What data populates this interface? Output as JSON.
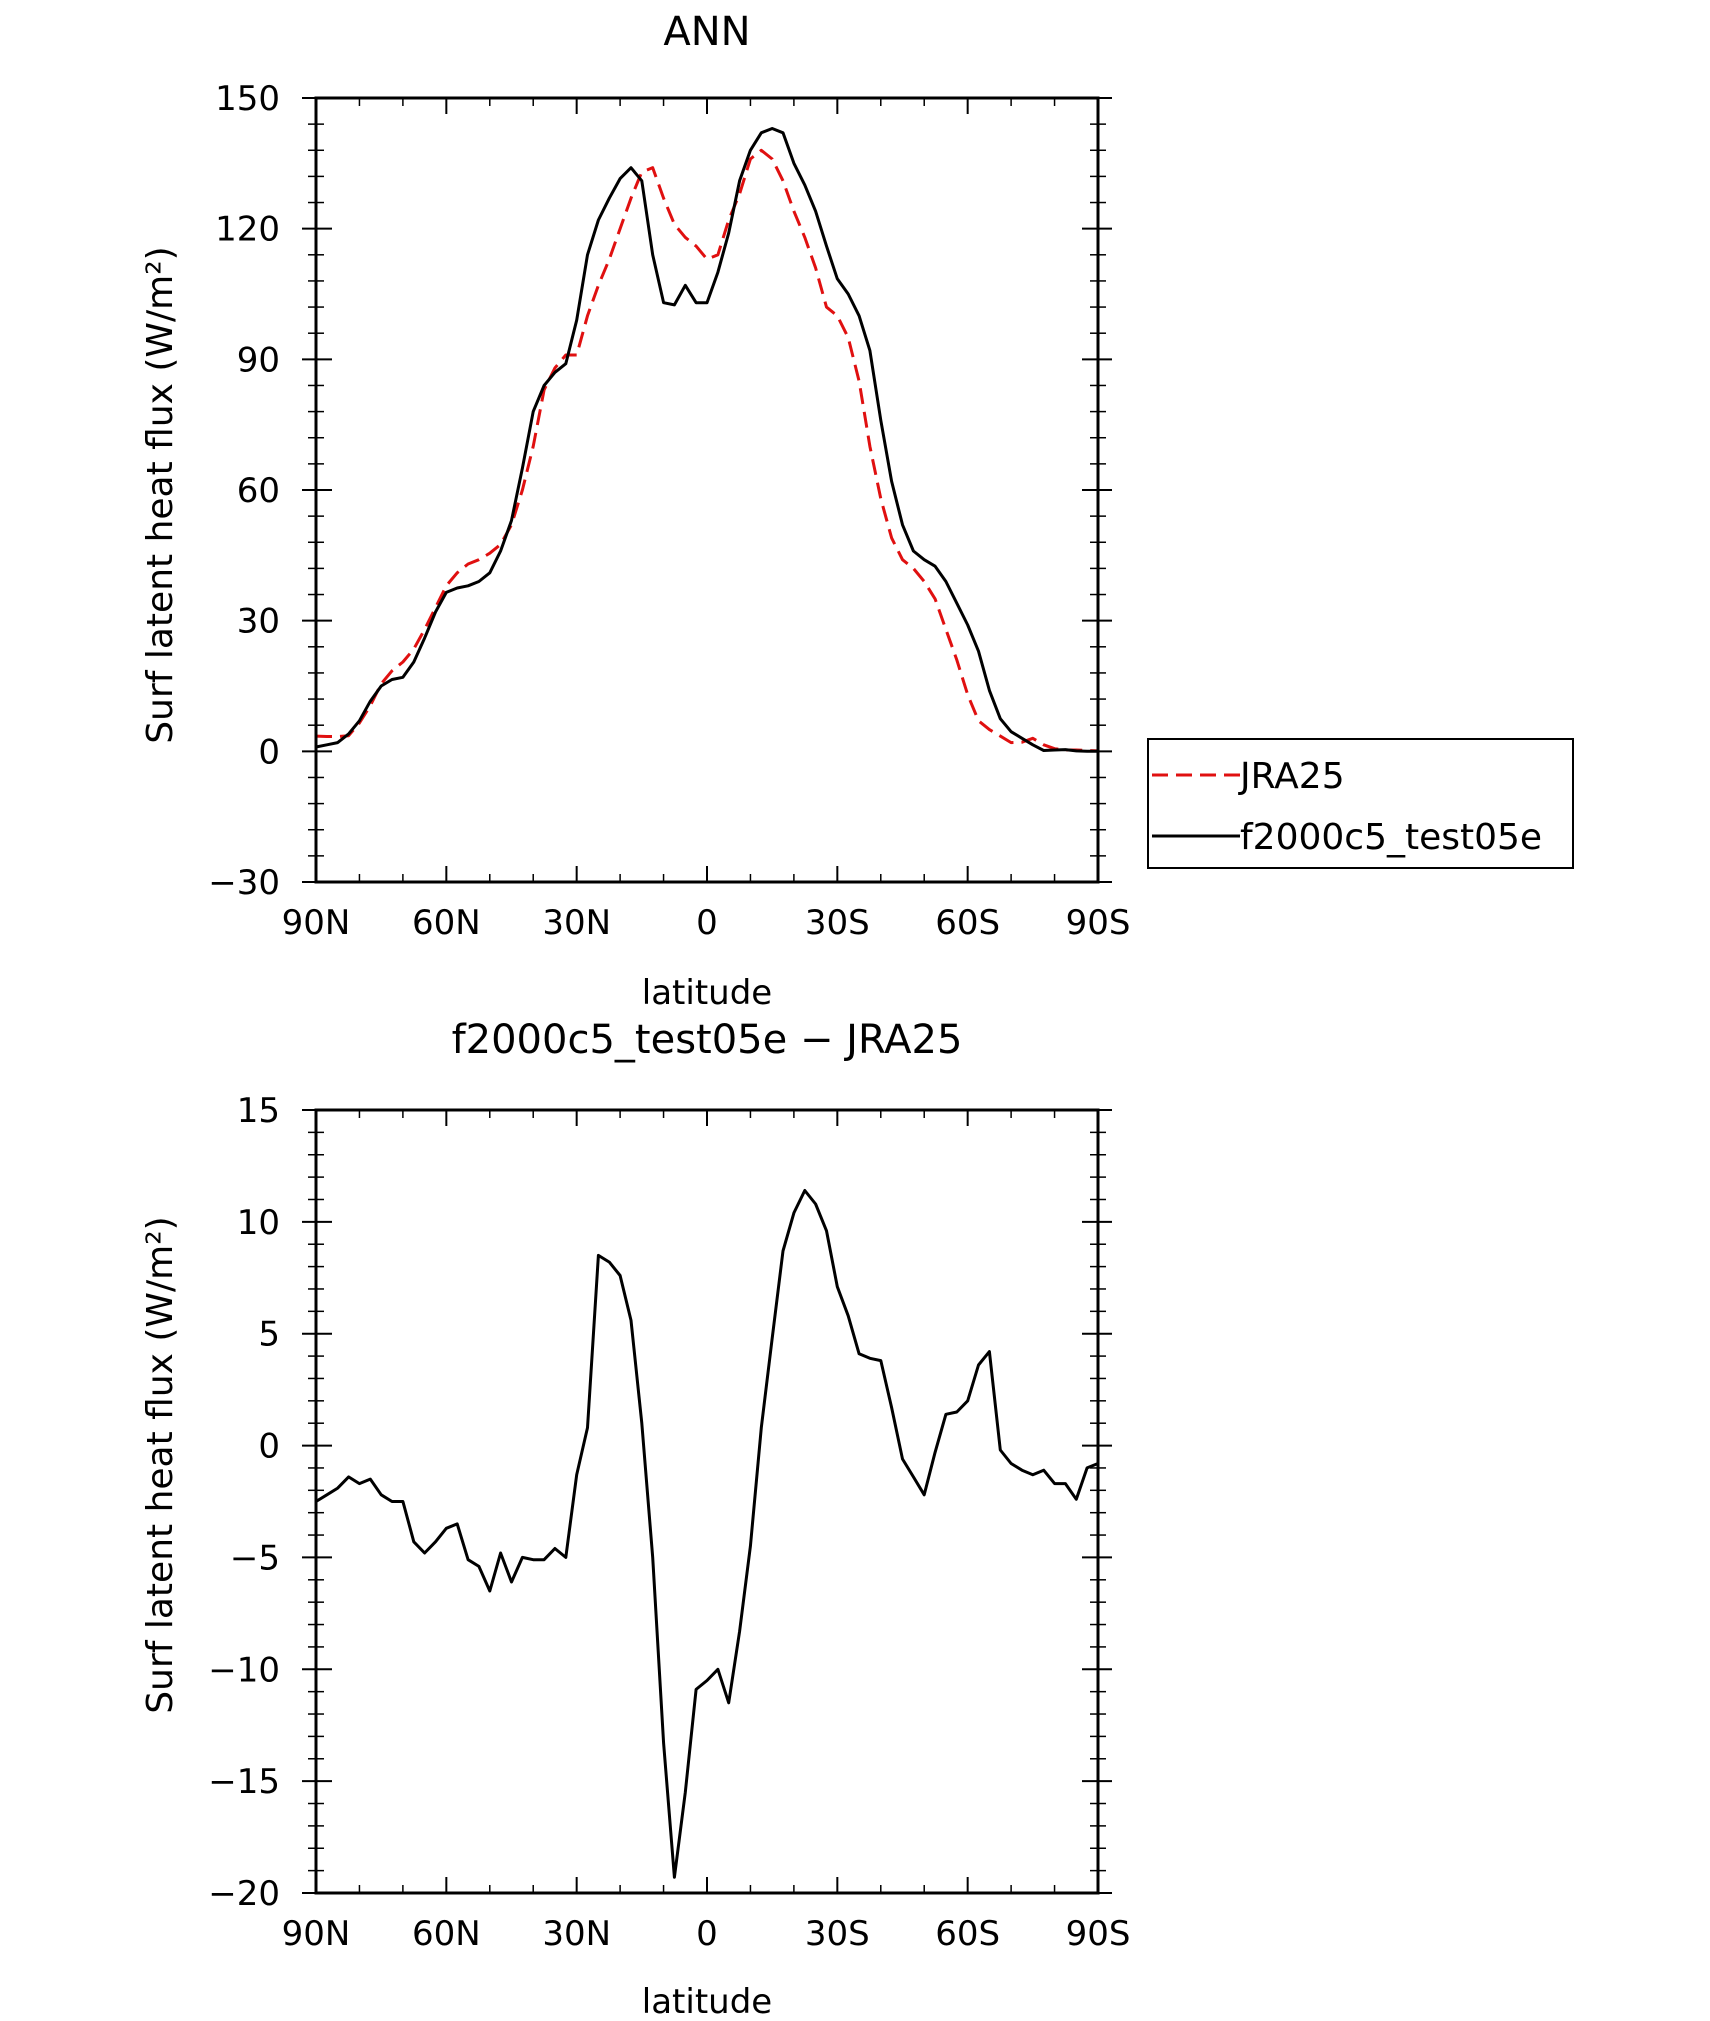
{
  "chart_data": [
    {
      "type": "line",
      "title": "ANN",
      "xlabel": "latitude",
      "ylabel": "Surf latent heat flux (W/m²)",
      "xlim": [
        90,
        -90
      ],
      "ylim": [
        -30,
        150
      ],
      "x_ticks": [
        90,
        60,
        30,
        0,
        -30,
        -60,
        -90
      ],
      "x_tick_labels": [
        "90N",
        "60N",
        "30N",
        "0",
        "30S",
        "60S",
        "90S"
      ],
      "y_ticks": [
        -30,
        0,
        30,
        60,
        90,
        120,
        150
      ],
      "y_tick_labels": [
        "−30",
        "0",
        "30",
        "60",
        "90",
        "120",
        "150"
      ],
      "legend_position": "right",
      "x": [
        90,
        87.5,
        85,
        82.5,
        80,
        77.5,
        75,
        72.5,
        70,
        67.5,
        65,
        62.5,
        60,
        57.5,
        55,
        52.5,
        50,
        47.5,
        45,
        42.5,
        40,
        37.5,
        35,
        32.5,
        30,
        27.5,
        25,
        22.5,
        20,
        17.5,
        15,
        12.5,
        10,
        7.5,
        5,
        2.5,
        0,
        -2.5,
        -5,
        -7.5,
        -10,
        -12.5,
        -15,
        -17.5,
        -20,
        -22.5,
        -25,
        -27.5,
        -30,
        -32.5,
        -35,
        -37.5,
        -40,
        -42.5,
        -45,
        -47.5,
        -50,
        -52.5,
        -55,
        -57.5,
        -60,
        -62.5,
        -65,
        -67.5,
        -70,
        -72.5,
        -75,
        -77.5,
        -80,
        -82.5,
        -85,
        -87.5,
        -90
      ],
      "series": [
        {
          "name": "JRA25",
          "color": "#e01010",
          "dash": "dashed",
          "values": [
            3.5,
            3.4,
            3.4,
            3.6,
            6.5,
            10.5,
            15.5,
            18.5,
            20.5,
            23.5,
            28,
            33,
            38,
            41,
            43,
            44,
            45.5,
            47.5,
            52,
            60,
            70,
            83,
            88,
            91,
            91,
            100,
            107,
            113,
            120,
            127,
            133,
            134,
            127,
            121,
            118,
            116,
            113,
            114,
            122,
            128,
            136,
            138,
            136,
            131,
            124,
            118,
            111,
            102,
            100,
            95,
            85,
            70,
            58,
            49,
            44,
            42,
            39,
            35,
            28,
            21,
            13,
            7,
            5,
            3.5,
            2,
            2.1,
            3,
            1.5,
            0.6,
            0.3,
            0.3,
            0.2,
            0.1
          ],
          "label_box": "JRA25"
        },
        {
          "name": "f2000c5_test05e",
          "color": "#000000",
          "dash": "solid",
          "values": [
            1,
            1.5,
            2,
            4,
            7,
            11.5,
            15,
            16.5,
            17,
            20.5,
            26,
            32,
            36.5,
            37.5,
            38,
            39,
            41,
            46,
            53,
            65,
            78,
            84,
            87,
            89,
            99,
            114,
            122,
            127,
            131.5,
            134,
            131,
            114,
            103,
            102.5,
            107,
            103,
            103,
            110,
            119,
            131,
            138,
            142,
            143,
            142,
            135,
            130,
            124,
            116,
            108.5,
            105,
            100,
            92,
            76,
            62,
            52,
            46,
            44,
            42.5,
            39,
            34,
            29,
            23,
            14,
            7.5,
            4.5,
            3,
            1.5,
            0.2,
            0.3,
            0.4,
            0.1,
            0,
            0
          ]
        }
      ]
    },
    {
      "type": "line",
      "title": "f2000c5_test05e − JRA25",
      "xlabel": "latitude",
      "ylabel": "Surf latent heat flux (W/m²)",
      "xlim": [
        90,
        -90
      ],
      "ylim": [
        -20,
        15
      ],
      "x_ticks": [
        90,
        60,
        30,
        0,
        -30,
        -60,
        -90
      ],
      "x_tick_labels": [
        "90N",
        "60N",
        "30N",
        "0",
        "30S",
        "60S",
        "90S"
      ],
      "y_ticks": [
        -20,
        -15,
        -10,
        -5,
        0,
        5,
        10,
        15
      ],
      "y_tick_labels": [
        "−20",
        "−15",
        "−10",
        "−5",
        "0",
        "5",
        "10",
        "15"
      ],
      "x": [
        90,
        87.5,
        85,
        82.5,
        80,
        77.5,
        75,
        72.5,
        70,
        67.5,
        65,
        62.5,
        60,
        57.5,
        55,
        52.5,
        50,
        47.5,
        45,
        42.5,
        40,
        37.5,
        35,
        32.5,
        30,
        27.5,
        25,
        22.5,
        20,
        17.5,
        15,
        12.5,
        10,
        7.5,
        5,
        2.5,
        0,
        -2.5,
        -5,
        -7.5,
        -10,
        -12.5,
        -15,
        -17.5,
        -20,
        -22.5,
        -25,
        -27.5,
        -30,
        -32.5,
        -35,
        -37.5,
        -40,
        -42.5,
        -45,
        -47.5,
        -50,
        -52.5,
        -55,
        -57.5,
        -60,
        -62.5,
        -65,
        -67.5,
        -70,
        -72.5,
        -75,
        -77.5,
        -80,
        -82.5,
        -85,
        -87.5,
        -90
      ],
      "series": [
        {
          "name": "",
          "color": "#000000",
          "dash": "solid",
          "values": [
            -2.5,
            -2.2,
            -1.9,
            -1.4,
            -1.7,
            -1.5,
            -2.2,
            -2.5,
            -2.5,
            -4.3,
            -4.8,
            -4.3,
            -3.7,
            -3.5,
            -5.1,
            -5.4,
            -6.5,
            -4.8,
            -6.1,
            -5.0,
            -5.1,
            -5.1,
            -4.6,
            -5.0,
            -1.3,
            0.8,
            8.5,
            8.2,
            7.6,
            5.6,
            1.0,
            -5.0,
            -13.3,
            -19.3,
            -15.5,
            -10.9,
            -10.5,
            -10.0,
            -11.5,
            -8.3,
            -4.5,
            0.8,
            4.8,
            8.7,
            10.4,
            11.4,
            10.8,
            9.6,
            7.1,
            5.8,
            4.1,
            3.9,
            3.8,
            1.7,
            -0.6,
            -1.4,
            -2.2,
            -0.3,
            1.4,
            1.5,
            2.0,
            3.6,
            4.2,
            -0.2,
            -0.8,
            -1.1,
            -1.3,
            -1.1,
            -1.7,
            -1.7,
            -2.4,
            -1.0,
            -0.8
          ]
        }
      ]
    }
  ]
}
